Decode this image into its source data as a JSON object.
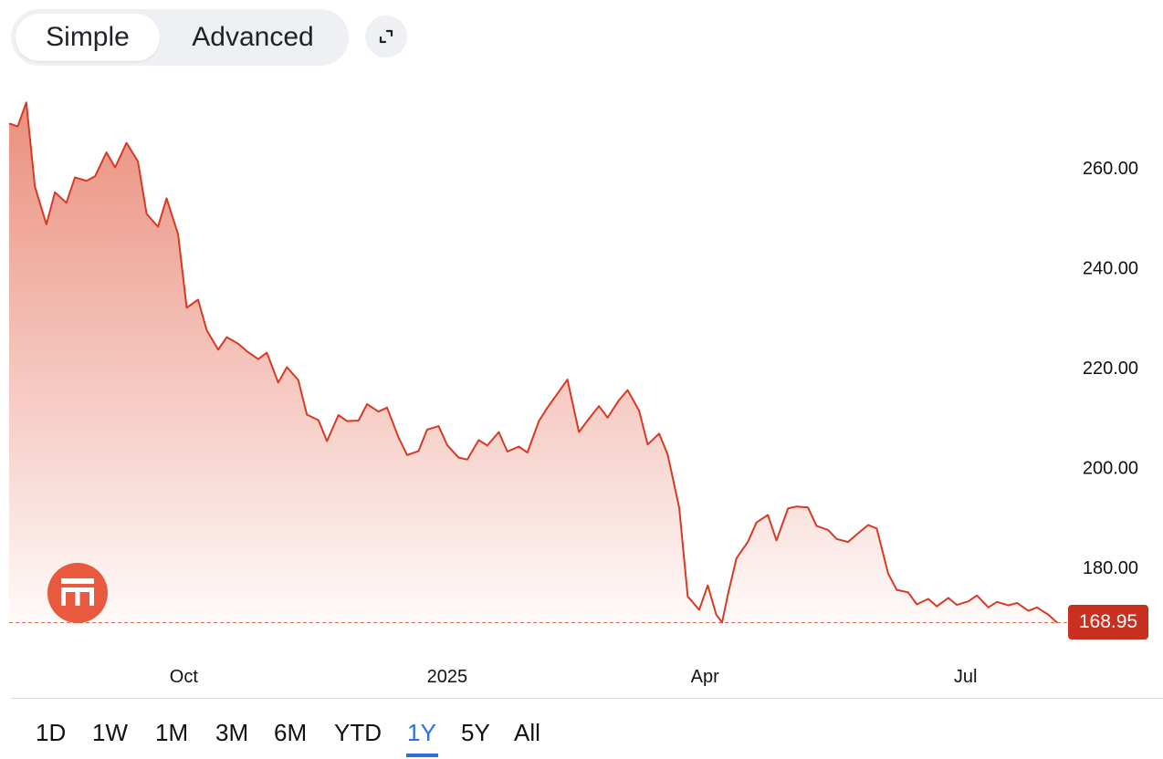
{
  "toolbar": {
    "simple_label": "Simple",
    "advanced_label": "Advanced",
    "active_mode": "Simple",
    "expand_icon": "expand-icon"
  },
  "price_badge": {
    "label": "168.95",
    "color": "#c9301f"
  },
  "logo_icon": "bank-building-icon",
  "ranges": {
    "items": [
      "1D",
      "1W",
      "1M",
      "3M",
      "6M",
      "YTD",
      "1Y",
      "5Y",
      "All"
    ],
    "active": "1Y",
    "active_color": "#2f6fdb"
  },
  "chart_data": {
    "type": "area",
    "title": "",
    "xlabel": "",
    "ylabel": "",
    "x_tick_labels": [
      "Oct",
      "2025",
      "Apr",
      "Jul"
    ],
    "y_tick_labels": [
      "180.00",
      "200.00",
      "220.00",
      "240.00",
      "260.00"
    ],
    "ylim": [
      167,
      274
    ],
    "grid": false,
    "line_color": "#d63a24",
    "fill_color": "#e8826f",
    "last_value": 168.95,
    "series": [
      {
        "x": [
          "2024-08-01",
          "2024-08-04",
          "2024-08-07",
          "2024-08-10",
          "2024-08-14",
          "2024-08-17",
          "2024-08-21",
          "2024-08-24",
          "2024-08-28",
          "2024-08-31",
          "2024-09-04",
          "2024-09-07",
          "2024-09-11",
          "2024-09-15",
          "2024-09-18",
          "2024-09-22",
          "2024-09-25",
          "2024-09-29",
          "2024-10-02",
          "2024-10-06",
          "2024-10-09",
          "2024-10-13",
          "2024-10-16",
          "2024-10-20",
          "2024-10-23",
          "2024-10-27",
          "2024-10-30",
          "2024-11-03",
          "2024-11-06",
          "2024-11-10",
          "2024-11-13",
          "2024-11-17",
          "2024-11-20",
          "2024-11-24",
          "2024-11-27",
          "2024-12-01",
          "2024-12-04",
          "2024-12-08",
          "2024-12-11",
          "2024-12-15",
          "2024-12-18",
          "2024-12-22",
          "2024-12-25",
          "2024-12-29",
          "2025-01-01",
          "2025-01-05",
          "2025-01-08",
          "2025-01-12",
          "2025-01-15",
          "2025-01-19",
          "2025-01-22",
          "2025-01-26",
          "2025-01-29",
          "2025-02-02",
          "2025-02-05",
          "2025-02-09",
          "2025-02-12",
          "2025-02-16",
          "2025-02-19",
          "2025-02-23",
          "2025-02-26",
          "2025-03-02",
          "2025-03-05",
          "2025-03-09",
          "2025-03-12",
          "2025-03-16",
          "2025-03-19",
          "2025-03-23",
          "2025-03-26",
          "2025-03-30",
          "2025-04-02",
          "2025-04-05",
          "2025-04-07",
          "2025-04-09",
          "2025-04-12",
          "2025-04-16",
          "2025-04-19",
          "2025-04-23",
          "2025-04-26",
          "2025-04-30",
          "2025-05-03",
          "2025-05-07",
          "2025-05-10",
          "2025-05-14",
          "2025-05-17",
          "2025-05-21",
          "2025-05-24",
          "2025-05-28",
          "2025-05-31",
          "2025-06-04",
          "2025-06-07",
          "2025-06-11",
          "2025-06-14",
          "2025-06-18",
          "2025-06-21",
          "2025-06-25",
          "2025-06-28",
          "2025-07-02",
          "2025-07-05",
          "2025-07-09",
          "2025-07-12",
          "2025-07-16",
          "2025-07-19",
          "2025-07-23",
          "2025-07-26",
          "2025-07-30",
          "2025-08-02"
        ],
        "y": [
          268.9,
          268.3,
          273.1,
          256.3,
          248.7,
          255.1,
          253.0,
          258.1,
          257.4,
          258.3,
          263.1,
          260.1,
          265.0,
          261.3,
          250.8,
          248.2,
          253.9,
          246.7,
          232.0,
          233.6,
          227.5,
          223.6,
          226.1,
          224.8,
          223.3,
          221.7,
          223.0,
          217.0,
          220.1,
          217.5,
          210.6,
          209.5,
          205.3,
          210.5,
          209.3,
          209.4,
          212.7,
          211.2,
          212.0,
          206.0,
          202.5,
          203.3,
          207.6,
          208.3,
          204.5,
          202.0,
          201.6,
          205.5,
          204.4,
          207.1,
          203.2,
          204.2,
          203.0,
          209.3,
          212.0,
          215.2,
          217.6,
          207.1,
          209.4,
          212.3,
          210.0,
          213.5,
          215.5,
          211.4,
          204.6,
          206.8,
          202.6,
          192.0,
          174.2,
          171.5,
          176.4,
          170.5,
          169.0,
          174.5,
          181.8,
          185.1,
          189.0,
          190.5,
          185.4,
          191.8,
          192.2,
          192.0,
          188.3,
          187.5,
          185.7,
          185.1,
          186.6,
          188.5,
          187.8,
          178.8,
          175.5,
          175.0,
          172.6,
          173.7,
          172.2,
          173.9,
          172.5,
          173.2,
          174.4,
          172.0,
          173.1,
          172.4,
          172.9,
          171.3,
          172.0,
          170.5,
          168.95
        ]
      }
    ]
  }
}
